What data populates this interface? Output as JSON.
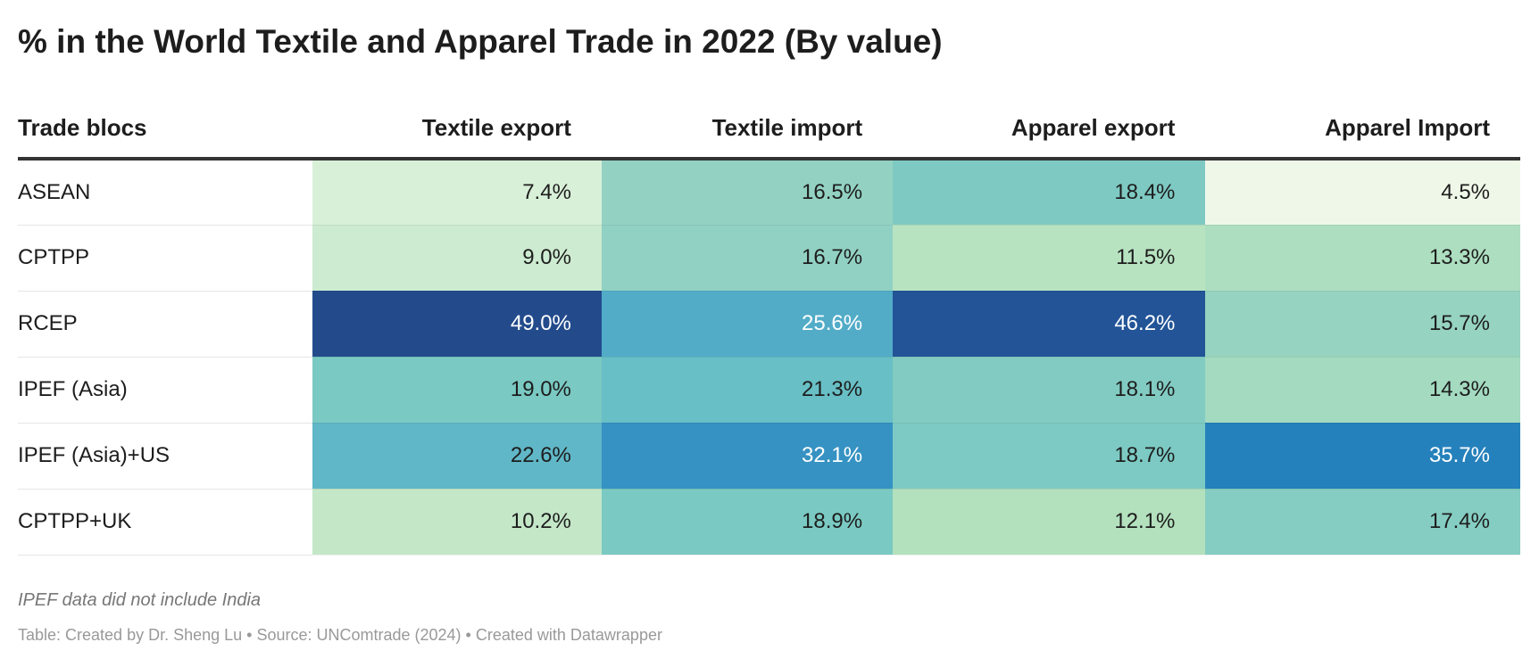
{
  "chart_data": {
    "type": "table",
    "title": "% in the World Textile and Apparel Trade in 2022 (By value)",
    "columns": [
      "Trade blocs",
      "Textile export",
      "Textile import",
      "Apparel export",
      "Apparel Import"
    ],
    "rows": [
      {
        "label": "ASEAN",
        "values": [
          "7.4%",
          "16.5%",
          "18.4%",
          "4.5%"
        ],
        "colors": [
          "#d9f0d8",
          "#93d2c2",
          "#7ecac3",
          "#eff8e8"
        ]
      },
      {
        "label": "CPTPP",
        "values": [
          "9.0%",
          "16.7%",
          "11.5%",
          "13.3%"
        ],
        "colors": [
          "#cdebd0",
          "#91d1c3",
          "#b8e3c1",
          "#addec0"
        ]
      },
      {
        "label": "RCEP",
        "values": [
          "49.0%",
          "25.6%",
          "46.2%",
          "15.7%"
        ],
        "colors": [
          "#234b8c",
          "#52acc8",
          "#225497",
          "#96d3c0"
        ]
      },
      {
        "label": "IPEF (Asia)",
        "values": [
          "19.0%",
          "21.3%",
          "18.1%",
          "14.3%"
        ],
        "colors": [
          "#7ac9c3",
          "#68bfc5",
          "#81cbc2",
          "#a3dac0"
        ]
      },
      {
        "label": "IPEF (Asia)+US",
        "values": [
          "22.6%",
          "32.1%",
          "18.7%",
          "35.7%"
        ],
        "colors": [
          "#60b7c7",
          "#3692c2",
          "#7ccac3",
          "#2581bb"
        ]
      },
      {
        "label": "CPTPP+UK",
        "values": [
          "10.2%",
          "18.9%",
          "12.1%",
          "17.4%"
        ],
        "colors": [
          "#c4e7c8",
          "#7acac3",
          "#b3e1bd",
          "#85cdc2"
        ]
      }
    ],
    "notes": "IPEF data did not include India",
    "source": "Table: Created by Dr. Sheng Lu • Source: UNComtrade (2024) • Created with Datawrapper"
  }
}
